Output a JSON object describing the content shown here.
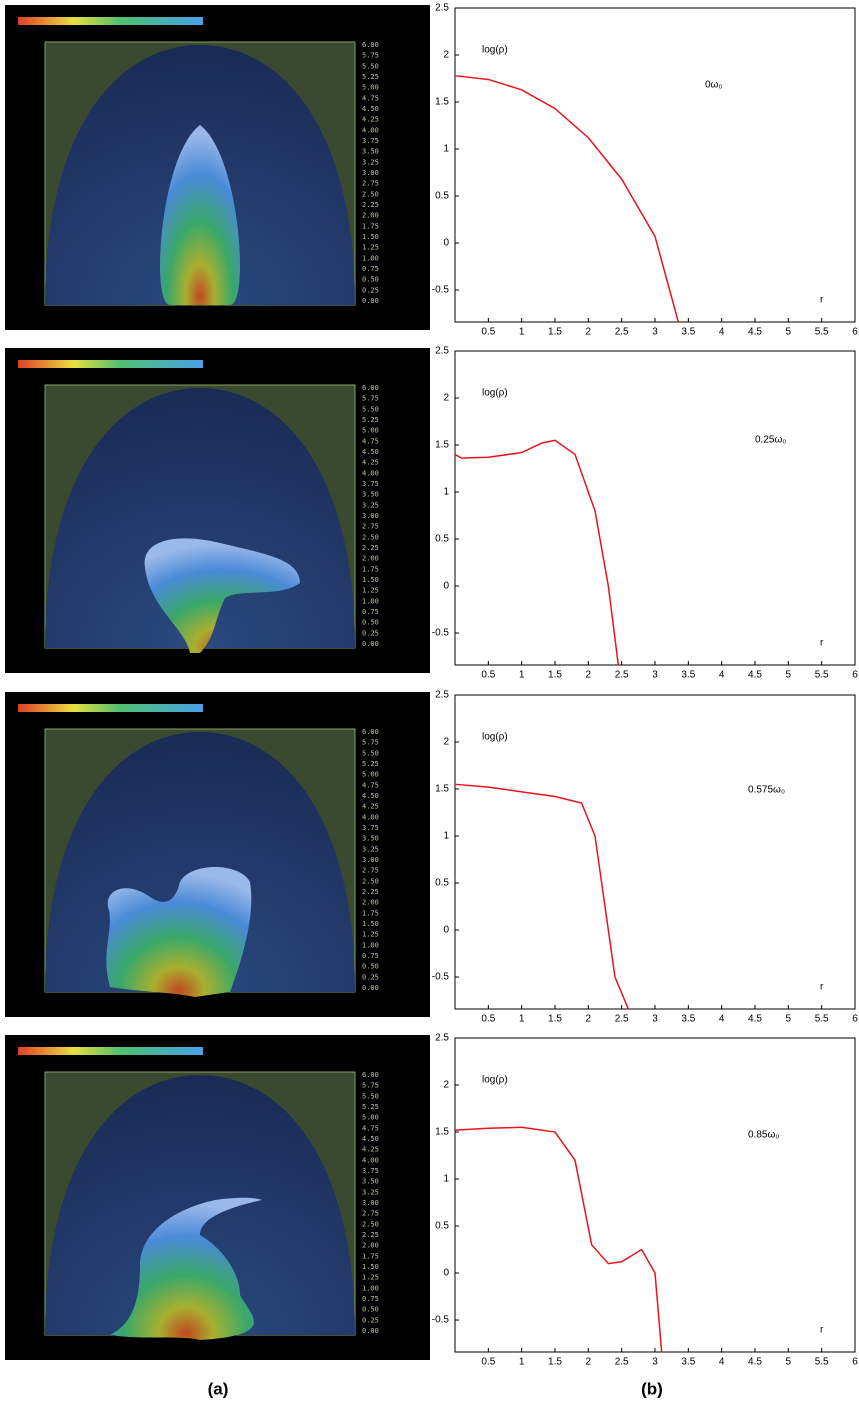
{
  "image_panels": {
    "scale_labels": [
      "6.00",
      "5.75",
      "5.50",
      "5.25",
      "5.00",
      "4.75",
      "4.50",
      "4.25",
      "4.00",
      "3.75",
      "3.50",
      "3.25",
      "3.00",
      "2.75",
      "2.50",
      "2.25",
      "2.00",
      "1.75",
      "1.50",
      "1.25",
      "1.00",
      "0.75",
      "0.50",
      "0.25",
      "0.00"
    ]
  },
  "captions": [
    "(a)",
    "(b)"
  ],
  "chart_data": [
    {
      "type": "line",
      "y_label": "log(ρ)",
      "x_label": "r",
      "annotation": "0ω₀",
      "color": "#e8141c",
      "x": [
        0,
        0.5,
        1,
        1.5,
        2,
        2.5,
        3,
        3.35
      ],
      "values": [
        1.78,
        1.74,
        1.63,
        1.43,
        1.12,
        0.68,
        0.07,
        -0.84
      ],
      "xlim": [
        0,
        6
      ],
      "ylim": [
        -0.84,
        2.5
      ],
      "xticks": [
        0.5,
        1,
        1.5,
        2,
        2.5,
        3,
        3.5,
        4,
        4.5,
        5,
        5.5,
        6
      ],
      "yticks": [
        -0.5,
        0,
        0.5,
        1,
        1.5,
        2,
        2.5
      ]
    },
    {
      "type": "line",
      "y_label": "log(ρ)",
      "x_label": "r",
      "annotation": "0.25ω₀",
      "color": "#e8141c",
      "x": [
        0,
        0.1,
        0.5,
        1,
        1.3,
        1.5,
        1.8,
        2.1,
        2.3,
        2.45
      ],
      "values": [
        1.4,
        1.36,
        1.37,
        1.42,
        1.52,
        1.55,
        1.4,
        0.8,
        0,
        -0.84
      ],
      "xlim": [
        0,
        6
      ],
      "ylim": [
        -0.84,
        2.5
      ],
      "xticks": [
        0.5,
        1,
        1.5,
        2,
        2.5,
        3,
        3.5,
        4,
        4.5,
        5,
        5.5,
        6
      ],
      "yticks": [
        -0.5,
        0,
        0.5,
        1,
        1.5,
        2,
        2.5
      ]
    },
    {
      "type": "line",
      "y_label": "log(ρ)",
      "x_label": "r",
      "annotation": "0.575ω₀",
      "color": "#e8141c",
      "x": [
        0,
        0.5,
        1,
        1.5,
        1.9,
        2.1,
        2.3,
        2.4,
        2.6
      ],
      "values": [
        1.55,
        1.52,
        1.47,
        1.42,
        1.35,
        1.0,
        0,
        -0.5,
        -0.84
      ],
      "xlim": [
        0,
        6
      ],
      "ylim": [
        -0.84,
        2.5
      ],
      "xticks": [
        0.5,
        1,
        1.5,
        2,
        2.5,
        3,
        3.5,
        4,
        4.5,
        5,
        5.5,
        6
      ],
      "yticks": [
        -0.5,
        0,
        0.5,
        1,
        1.5,
        2,
        2.5
      ]
    },
    {
      "type": "line",
      "y_label": "log(ρ)",
      "x_label": "r",
      "annotation": "0.85ω₀",
      "color": "#e8141c",
      "x": [
        0,
        0.5,
        1,
        1.5,
        1.8,
        2.05,
        2.3,
        2.5,
        2.8,
        3.0,
        3.1
      ],
      "values": [
        1.52,
        1.54,
        1.55,
        1.5,
        1.2,
        0.3,
        0.1,
        0.12,
        0.25,
        0,
        -0.84
      ],
      "xlim": [
        0,
        6
      ],
      "ylim": [
        -0.84,
        2.5
      ],
      "xticks": [
        0.5,
        1,
        1.5,
        2,
        2.5,
        3,
        3.5,
        4,
        4.5,
        5,
        5.5,
        6
      ],
      "yticks": [
        -0.5,
        0,
        0.5,
        1,
        1.5,
        2,
        2.5
      ]
    }
  ]
}
